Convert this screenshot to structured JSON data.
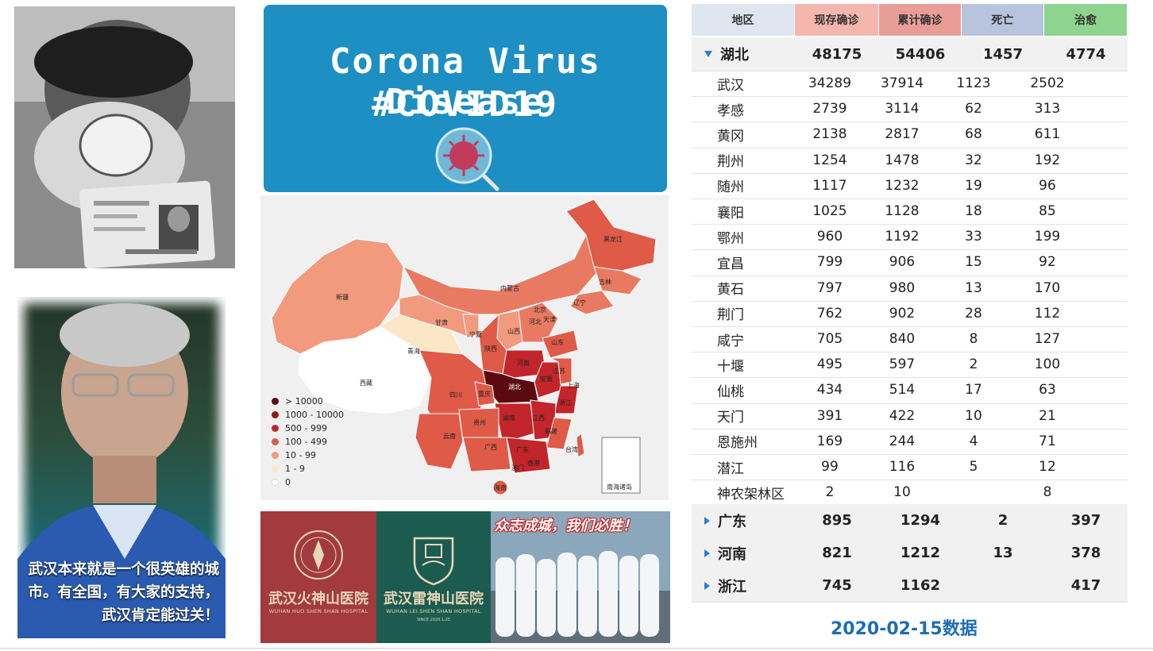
{
  "photos": {
    "caption": "武汉本来就是一个很英雄的城市。有全国，有大家的支持，武汉肯定能过关！"
  },
  "banner": {
    "title_line1": "Corona Virus Disease",
    "title_line2": "#COVID19"
  },
  "map": {
    "legend": [
      {
        "label": "> 10000",
        "color": "#5c0a12"
      },
      {
        "label": "1000 - 10000",
        "color": "#8e1b1b"
      },
      {
        "label": "500 - 999",
        "color": "#c2252b"
      },
      {
        "label": "100 - 499",
        "color": "#e05a48"
      },
      {
        "label": "10 - 99",
        "color": "#f29a7e"
      },
      {
        "label": "1 - 9",
        "color": "#fbe6c6"
      },
      {
        "label": "0",
        "color": "#ffffff"
      }
    ],
    "provinces": [
      "黑龙江",
      "吉林",
      "辽宁",
      "内蒙古",
      "北京",
      "天津",
      "河北",
      "山西",
      "山东",
      "宁夏",
      "甘肃",
      "新疆",
      "青海",
      "西藏",
      "陕西",
      "河南",
      "江苏",
      "安徽",
      "上海",
      "湖北",
      "浙江",
      "四川",
      "重庆",
      "湖南",
      "江西",
      "福建",
      "贵州",
      "云南",
      "广西",
      "广东",
      "台湾",
      "香港",
      "澳门",
      "海南"
    ],
    "inset_label": "南海诸岛"
  },
  "hospitals": [
    {
      "name": "武汉火神山医院",
      "en": "WUHAN HUO SHEN SHAN HOSPITAL",
      "color": "#a33a3e"
    },
    {
      "name": "武汉雷神山医院",
      "en": "WUHAN LEI SHEN SHAN HOSPITAL",
      "since": "SINCE 2020.1.25",
      "color": "#1c5b50"
    },
    {
      "slogan": "众志成城，我们必胜！"
    }
  ],
  "table": {
    "headers": [
      "地区",
      "现存确诊",
      "累计确诊",
      "死亡",
      "治愈"
    ],
    "header_colors": [
      "#dfe6f0",
      "#f4b6ad",
      "#e89e96",
      "#b8c4de",
      "#8ed48e"
    ],
    "hubei": {
      "name": "湖北",
      "current": "48175",
      "total": "54406",
      "deaths": "1457",
      "cured": "4774"
    },
    "cities": [
      {
        "name": "武汉",
        "current": "34289",
        "total": "37914",
        "deaths": "1123",
        "cured": "2502"
      },
      {
        "name": "孝感",
        "current": "2739",
        "total": "3114",
        "deaths": "62",
        "cured": "313"
      },
      {
        "name": "黄冈",
        "current": "2138",
        "total": "2817",
        "deaths": "68",
        "cured": "611"
      },
      {
        "name": "荆州",
        "current": "1254",
        "total": "1478",
        "deaths": "32",
        "cured": "192"
      },
      {
        "name": "随州",
        "current": "1117",
        "total": "1232",
        "deaths": "19",
        "cured": "96"
      },
      {
        "name": "襄阳",
        "current": "1025",
        "total": "1128",
        "deaths": "18",
        "cured": "85"
      },
      {
        "name": "鄂州",
        "current": "960",
        "total": "1192",
        "deaths": "33",
        "cured": "199"
      },
      {
        "name": "宜昌",
        "current": "799",
        "total": "906",
        "deaths": "15",
        "cured": "92"
      },
      {
        "name": "黄石",
        "current": "797",
        "total": "980",
        "deaths": "13",
        "cured": "170"
      },
      {
        "name": "荆门",
        "current": "762",
        "total": "902",
        "deaths": "28",
        "cured": "112"
      },
      {
        "name": "咸宁",
        "current": "705",
        "total": "840",
        "deaths": "8",
        "cured": "127"
      },
      {
        "name": "十堰",
        "current": "495",
        "total": "597",
        "deaths": "2",
        "cured": "100"
      },
      {
        "name": "仙桃",
        "current": "434",
        "total": "514",
        "deaths": "17",
        "cured": "63"
      },
      {
        "name": "天门",
        "current": "391",
        "total": "422",
        "deaths": "10",
        "cured": "21"
      },
      {
        "name": "恩施州",
        "current": "169",
        "total": "244",
        "deaths": "4",
        "cured": "71"
      },
      {
        "name": "潜江",
        "current": "99",
        "total": "116",
        "deaths": "5",
        "cured": "12"
      },
      {
        "name": "神农架林区",
        "current": "2",
        "total": "10",
        "deaths": "",
        "cured": "8"
      }
    ],
    "others": [
      {
        "name": "广东",
        "current": "895",
        "total": "1294",
        "deaths": "2",
        "cured": "397"
      },
      {
        "name": "河南",
        "current": "821",
        "total": "1212",
        "deaths": "13",
        "cured": "378"
      },
      {
        "name": "浙江",
        "current": "745",
        "total": "1162",
        "deaths": "",
        "cured": "417"
      }
    ]
  },
  "date_label": "2020-02-15数据"
}
